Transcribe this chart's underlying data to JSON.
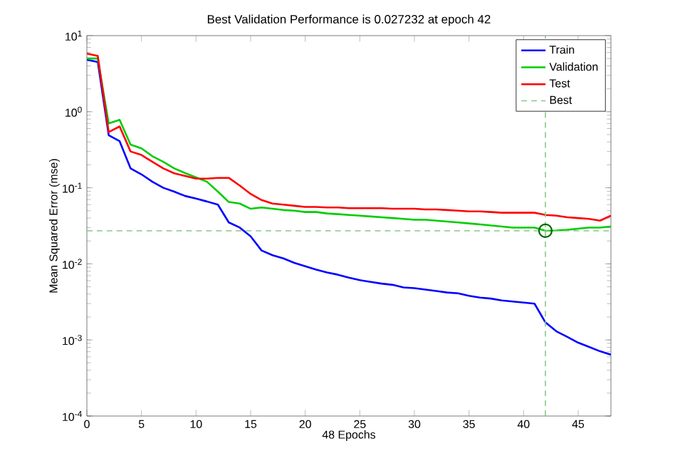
{
  "chart_data": {
    "type": "line",
    "title": "Best Validation Performance is 0.027232 at epoch 42",
    "xlabel": "48 Epochs",
    "ylabel": "Mean Squared Error  (mse)",
    "x": [
      0,
      1,
      2,
      3,
      4,
      5,
      6,
      7,
      8,
      9,
      10,
      11,
      12,
      13,
      14,
      15,
      16,
      17,
      18,
      19,
      20,
      21,
      22,
      23,
      24,
      25,
      26,
      27,
      28,
      29,
      30,
      31,
      32,
      33,
      34,
      35,
      36,
      37,
      38,
      39,
      40,
      41,
      42,
      43,
      44,
      45,
      46,
      47,
      48
    ],
    "series": [
      {
        "name": "Train",
        "color": "#0000ff",
        "values": [
          4.8,
          4.5,
          0.49,
          0.41,
          0.18,
          0.15,
          0.12,
          0.1,
          0.089,
          0.078,
          0.072,
          0.066,
          0.06,
          0.035,
          0.03,
          0.023,
          0.015,
          0.013,
          0.0118,
          0.0103,
          0.0093,
          0.0084,
          0.0077,
          0.0072,
          0.0066,
          0.0061,
          0.0058,
          0.0055,
          0.0053,
          0.0049,
          0.0048,
          0.0046,
          0.0044,
          0.0042,
          0.0041,
          0.0038,
          0.0036,
          0.0035,
          0.0033,
          0.0032,
          0.0031,
          0.003,
          0.0017,
          0.0013,
          0.0011,
          0.00092,
          0.00081,
          0.00071,
          0.00064
        ]
      },
      {
        "name": "Validation",
        "color": "#00cc00",
        "values": [
          5.0,
          5.0,
          0.7,
          0.78,
          0.37,
          0.33,
          0.26,
          0.22,
          0.18,
          0.156,
          0.137,
          0.12,
          0.089,
          0.065,
          0.062,
          0.053,
          0.055,
          0.053,
          0.051,
          0.05,
          0.048,
          0.048,
          0.046,
          0.045,
          0.044,
          0.043,
          0.042,
          0.041,
          0.04,
          0.039,
          0.038,
          0.038,
          0.037,
          0.036,
          0.035,
          0.034,
          0.033,
          0.032,
          0.031,
          0.03,
          0.03,
          0.03,
          0.027232,
          0.0275,
          0.028,
          0.029,
          0.03,
          0.03,
          0.031
        ]
      },
      {
        "name": "Test",
        "color": "#ff0000",
        "values": [
          5.8,
          5.4,
          0.54,
          0.64,
          0.3,
          0.27,
          0.22,
          0.18,
          0.155,
          0.143,
          0.132,
          0.132,
          0.135,
          0.135,
          0.107,
          0.083,
          0.069,
          0.062,
          0.06,
          0.058,
          0.056,
          0.056,
          0.055,
          0.055,
          0.054,
          0.054,
          0.054,
          0.054,
          0.053,
          0.053,
          0.053,
          0.052,
          0.052,
          0.051,
          0.05,
          0.049,
          0.049,
          0.048,
          0.047,
          0.047,
          0.047,
          0.047,
          0.044,
          0.043,
          0.041,
          0.04,
          0.039,
          0.037,
          0.043
        ]
      },
      {
        "type": "scatter",
        "marker": "circle",
        "color": "#006600",
        "x": [
          42
        ],
        "values": [
          0.027232
        ]
      }
    ],
    "ref_lines": [
      {
        "axis": "y",
        "value": 0.027232,
        "label": "Best",
        "color": "#88c888",
        "line_style": "dashed"
      },
      {
        "axis": "x",
        "value": 42,
        "color": "#88c888",
        "line_style": "dashed"
      }
    ],
    "log": "y",
    "legend": "top right",
    "grid": false,
    "xlim": [
      0,
      48
    ],
    "xticks": [
      0,
      5,
      10,
      15,
      20,
      25,
      30,
      35,
      40,
      45
    ],
    "ylim": [
      0.0001,
      10
    ],
    "yticks": [
      {
        "value": 0.0001,
        "label": "10$^{-4}$"
      },
      {
        "value": 0.001,
        "label": "10$^{-3}$"
      },
      {
        "value": 0.01,
        "label": "10$^{-2}$"
      },
      {
        "value": 0.1,
        "label": "10$^{-1}$"
      },
      {
        "value": 1,
        "label": "10$^{0}$"
      },
      {
        "value": 10,
        "label": "10$^{1}$"
      }
    ]
  }
}
